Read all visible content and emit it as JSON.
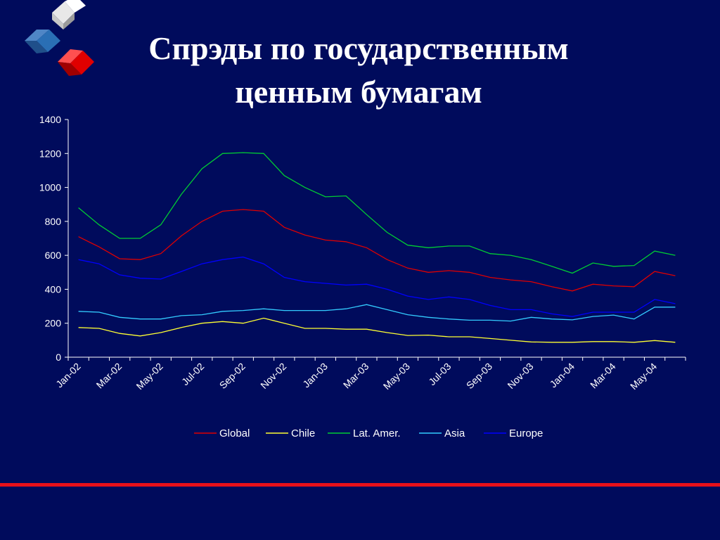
{
  "slide": {
    "title_line1": "Спрэды по государственным",
    "title_line2": "ценным бумагам"
  },
  "chart_data": {
    "type": "line",
    "ylim": [
      0,
      1400
    ],
    "yticks": [
      0,
      200,
      400,
      600,
      800,
      1000,
      1200,
      1400
    ],
    "x": [
      "Jan-02",
      "Feb-02",
      "Mar-02",
      "Apr-02",
      "May-02",
      "Jun-02",
      "Jul-02",
      "Aug-02",
      "Sep-02",
      "Oct-02",
      "Nov-02",
      "Dec-02",
      "Jan-03",
      "Feb-03",
      "Mar-03",
      "Apr-03",
      "May-03",
      "Jun-03",
      "Jul-03",
      "Aug-03",
      "Sep-03",
      "Oct-03",
      "Nov-03",
      "Dec-03",
      "Jan-04",
      "Feb-04",
      "Mar-04",
      "Apr-04",
      "May-04",
      "Jun-04"
    ],
    "xticks": [
      "Jan-02",
      "Mar-02",
      "May-02",
      "Jul-02",
      "Sep-02",
      "Nov-02",
      "Jan-03",
      "Mar-03",
      "May-03",
      "Jul-03",
      "Sep-03",
      "Nov-03",
      "Jan-04",
      "Mar-04",
      "May-04"
    ],
    "legend_position": "bottom",
    "grid": false,
    "series": [
      {
        "name": "Global",
        "color": "#e00000",
        "values": [
          710,
          650,
          580,
          575,
          610,
          715,
          800,
          860,
          870,
          860,
          765,
          720,
          690,
          680,
          645,
          575,
          525,
          500,
          510,
          500,
          470,
          455,
          445,
          415,
          390,
          430,
          420,
          415,
          505,
          480
        ]
      },
      {
        "name": "Chile",
        "color": "#ffff33",
        "values": [
          175,
          170,
          140,
          125,
          145,
          175,
          200,
          210,
          200,
          230,
          200,
          170,
          170,
          165,
          165,
          145,
          128,
          130,
          120,
          120,
          110,
          100,
          90,
          88,
          88,
          92,
          92,
          88,
          98,
          88
        ]
      },
      {
        "name": "Lat. Amer.",
        "color": "#00cc33",
        "values": [
          880,
          780,
          700,
          700,
          780,
          960,
          1110,
          1200,
          1205,
          1200,
          1070,
          1000,
          945,
          950,
          840,
          735,
          660,
          645,
          655,
          655,
          610,
          600,
          575,
          535,
          495,
          555,
          535,
          540,
          625,
          600
        ]
      },
      {
        "name": "Asia",
        "color": "#33ccff",
        "values": [
          270,
          265,
          235,
          225,
          225,
          245,
          250,
          270,
          275,
          285,
          275,
          275,
          275,
          285,
          310,
          280,
          250,
          235,
          225,
          218,
          218,
          213,
          235,
          225,
          220,
          240,
          248,
          225,
          295,
          295
        ]
      },
      {
        "name": "Europe",
        "color": "#0000ff",
        "values": [
          575,
          550,
          485,
          465,
          460,
          505,
          550,
          575,
          590,
          550,
          470,
          445,
          435,
          425,
          430,
          400,
          360,
          340,
          355,
          340,
          305,
          280,
          280,
          255,
          240,
          265,
          265,
          265,
          340,
          315
        ]
      }
    ]
  }
}
